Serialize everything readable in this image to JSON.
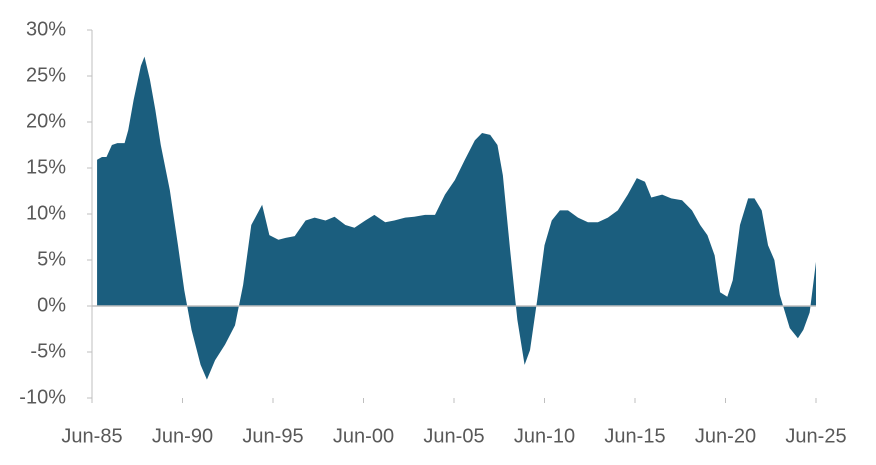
{
  "chart_data": {
    "type": "area",
    "color": "#1b5e7e",
    "x": [
      1985.78,
      1986.05,
      1986.3,
      1986.6,
      1986.9,
      1987.3,
      1987.5,
      1987.8,
      1988.2,
      1988.4,
      1988.7,
      1989.0,
      1989.3,
      1989.8,
      1990.25,
      1990.6,
      1991.0,
      1991.5,
      1991.85,
      1992.3,
      1992.85,
      1993.4,
      1993.85,
      1994.3,
      1994.9,
      1995.3,
      1995.8,
      1996.2,
      1996.7,
      1997.3,
      1997.8,
      1998.4,
      1998.9,
      1999.5,
      2000.0,
      2000.6,
      2001.1,
      2001.7,
      2002.2,
      2002.8,
      2003.3,
      2003.9,
      2004.45,
      2005.0,
      2005.55,
      2006.1,
      2006.65,
      2007.05,
      2007.5,
      2007.9,
      2008.2,
      2008.6,
      2009.0,
      2009.4,
      2009.7,
      2010.1,
      2010.5,
      2010.9,
      2011.35,
      2011.8,
      2012.35,
      2012.9,
      2013.45,
      2014.0,
      2014.55,
      2015.1,
      2015.6,
      2016.05,
      2016.4,
      2017.0,
      2017.5,
      2018.1,
      2018.65,
      2019.1,
      2019.5,
      2019.9,
      2020.2,
      2020.6,
      2020.9,
      2021.3,
      2021.75,
      2022.1,
      2022.5,
      2022.85,
      2023.2,
      2023.5,
      2024.05,
      2024.5,
      2024.8,
      2025.15,
      2025.5
    ],
    "values": [
      15.9,
      16.2,
      16.2,
      17.5,
      17.7,
      17.7,
      19.1,
      22.4,
      26.1,
      27.1,
      24.6,
      21.3,
      17.5,
      12.6,
      6.6,
      1.7,
      -2.6,
      -6.4,
      -8.0,
      -5.9,
      -4.2,
      -2.1,
      2.3,
      8.8,
      11.0,
      7.7,
      7.2,
      7.4,
      7.6,
      9.3,
      9.6,
      9.3,
      9.7,
      8.8,
      8.5,
      9.3,
      9.9,
      9.1,
      9.3,
      9.6,
      9.7,
      9.9,
      9.9,
      12.1,
      13.7,
      15.9,
      18.0,
      18.8,
      18.6,
      17.5,
      14.2,
      6.1,
      -1.5,
      -6.4,
      -4.8,
      0.7,
      6.6,
      9.3,
      10.4,
      10.4,
      9.6,
      9.1,
      9.1,
      9.6,
      10.4,
      12.1,
      13.9,
      13.5,
      11.8,
      12.1,
      11.7,
      11.5,
      10.4,
      8.8,
      7.7,
      5.5,
      1.5,
      1.0,
      2.8,
      8.8,
      11.7,
      11.7,
      10.4,
      6.6,
      5.0,
      1.2,
      -2.4,
      -3.5,
      -2.6,
      -0.7,
      4.8
    ],
    "xlim": [
      1985.5,
      2025.5
    ],
    "xticks": [
      {
        "value": 1985.5,
        "label": "Jun-85"
      },
      {
        "value": 1990.5,
        "label": "Jun-90"
      },
      {
        "value": 1995.5,
        "label": "Jun-95"
      },
      {
        "value": 2000.5,
        "label": "Jun-00"
      },
      {
        "value": 2005.5,
        "label": "Jun-05"
      },
      {
        "value": 2010.5,
        "label": "Jun-10"
      },
      {
        "value": 2015.5,
        "label": "Jun-15"
      },
      {
        "value": 2020.5,
        "label": "Jun-20"
      },
      {
        "value": 2025.5,
        "label": "Jun-25"
      }
    ],
    "ylim": [
      -10,
      30
    ],
    "yticks": [
      {
        "value": -10,
        "label": "-10%"
      },
      {
        "value": -5,
        "label": "-5%"
      },
      {
        "value": 0,
        "label": "0%"
      },
      {
        "value": 5,
        "label": "5%"
      },
      {
        "value": 10,
        "label": "10%"
      },
      {
        "value": 15,
        "label": "15%"
      },
      {
        "value": 20,
        "label": "20%"
      },
      {
        "value": 25,
        "label": "25%"
      },
      {
        "value": 30,
        "label": "30%"
      }
    ],
    "grid": false
  }
}
